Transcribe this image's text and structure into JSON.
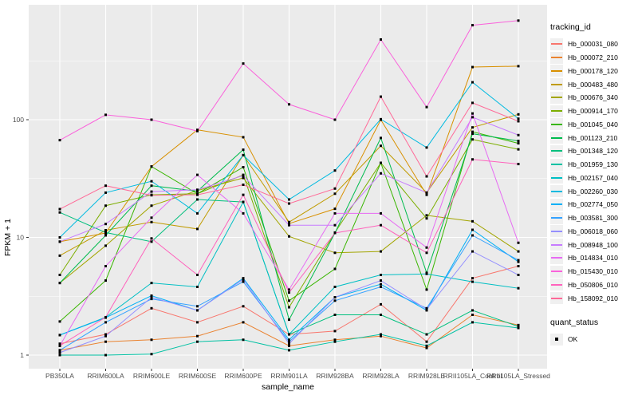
{
  "figure": {
    "x_axis_title": "sample_name",
    "y_axis_title": "FPKM + 1",
    "panel_background": "#EBEBEB",
    "grid_color": "#FFFFFF",
    "tick_color": "#333333",
    "tick_label_color": "#4D4D4D",
    "marker_color": "#000000"
  },
  "legend": {
    "tracking_title": "tracking_id",
    "quant_title": "quant_status",
    "quant_ok_label": "OK"
  },
  "chart_data": {
    "type": "line",
    "title": "",
    "xlabel": "sample_name",
    "ylabel": "FPKM + 1",
    "y_scale": "log10",
    "y_ticks": [
      1,
      10,
      100
    ],
    "y_minor_ticks": [
      3.162,
      31.62,
      316.2
    ],
    "ylim": [
      0.93,
      950
    ],
    "grid": true,
    "legend_position": "right",
    "point_marker": "filled-black-square",
    "categories": [
      "PB350LA",
      "RRIM600LA",
      "RRIM600LE",
      "RRIM600SE",
      "RRIM600PE",
      "RRIM901LA",
      "RRIM928BA",
      "RRIM928LA",
      "RRIM928LE",
      "RRII105LA_Control",
      "RRII105LA_Stressed"
    ],
    "series": [
      {
        "name": "Hb_000031_080",
        "color": "#F8766D",
        "values": [
          1.25,
          1.5,
          2.5,
          1.9,
          2.6,
          1.5,
          1.6,
          2.7,
          1.3,
          4.5,
          5.7
        ]
      },
      {
        "name": "Hb_000072_210",
        "color": "#EA8331",
        "values": [
          1.1,
          1.3,
          1.35,
          1.45,
          1.9,
          1.2,
          1.35,
          1.45,
          1.15,
          2.2,
          1.8
        ]
      },
      {
        "name": "Hb_000178_120",
        "color": "#D89000",
        "values": [
          9.2,
          10.9,
          40,
          82,
          71,
          13.1,
          17.5,
          100,
          23,
          280,
          285
        ]
      },
      {
        "name": "Hb_000483_480",
        "color": "#C09B00",
        "values": [
          7.0,
          11.5,
          13.5,
          11.8,
          50,
          13.5,
          23.5,
          60,
          24,
          86,
          111
        ]
      },
      {
        "name": "Hb_000676_340",
        "color": "#A3A500",
        "values": [
          4.1,
          8.5,
          18.6,
          25,
          32,
          10.2,
          7.4,
          7.6,
          15.4,
          13.7,
          7.6
        ]
      },
      {
        "name": "Hb_000914_170",
        "color": "#7CAE00",
        "values": [
          4.8,
          18.6,
          23,
          23.5,
          34,
          2.55,
          11,
          43,
          14.5,
          68,
          56
        ]
      },
      {
        "name": "Hb_001045_040",
        "color": "#39B600",
        "values": [
          1.93,
          4.3,
          40,
          23.5,
          39.5,
          2.9,
          5.4,
          43,
          3.6,
          79,
          63
        ]
      },
      {
        "name": "Hb_001123_210",
        "color": "#00BB4E",
        "values": [
          4.1,
          10.4,
          27.5,
          24.7,
          55.6,
          2.0,
          10.9,
          70,
          5.0,
          76,
          66
        ]
      },
      {
        "name": "Hb_001348_120",
        "color": "#00BF7D",
        "values": [
          16.3,
          11,
          9.2,
          21,
          20,
          1.5,
          2.2,
          2.2,
          1.5,
          2.4,
          1.75
        ]
      },
      {
        "name": "Hb_001959_130",
        "color": "#00C1A3",
        "values": [
          1.0,
          1.0,
          1.02,
          1.3,
          1.35,
          1.1,
          1.3,
          1.5,
          1.2,
          1.9,
          1.7
        ]
      },
      {
        "name": "Hb_002157_040",
        "color": "#00BFC4",
        "values": [
          1.48,
          2.1,
          4.1,
          3.8,
          20,
          1.5,
          3.8,
          4.8,
          4.9,
          4.2,
          3.7
        ]
      },
      {
        "name": "Hb_002260_030",
        "color": "#00BAE0",
        "values": [
          10,
          24,
          30,
          16,
          50,
          21,
          37,
          101,
          58,
          208,
          102
        ]
      },
      {
        "name": "Hb_002774_050",
        "color": "#00B0F6",
        "values": [
          1.48,
          2.08,
          3.2,
          2.4,
          4.5,
          1.35,
          3.1,
          4.0,
          2.4,
          11.6,
          6.2
        ]
      },
      {
        "name": "Hb_003581_300",
        "color": "#35A2FF",
        "values": [
          1.1,
          1.9,
          3.0,
          2.6,
          4.2,
          1.3,
          2.9,
          3.8,
          2.5,
          10.4,
          6.4
        ]
      },
      {
        "name": "Hb_006018_060",
        "color": "#9590FF",
        "values": [
          1.05,
          1.45,
          3.1,
          2.4,
          4.4,
          1.25,
          3.1,
          4.3,
          2.45,
          7.6,
          4.8
        ]
      },
      {
        "name": "Hb_008948_100",
        "color": "#C77CFF",
        "values": [
          9.2,
          13,
          24.5,
          25.4,
          33.5,
          12.7,
          12.7,
          35,
          24,
          105,
          74
        ]
      },
      {
        "name": "Hb_014834_010",
        "color": "#E76BF3",
        "values": [
          1.2,
          5.7,
          14.7,
          34,
          16,
          3.6,
          16,
          16,
          8.2,
          113,
          9.0
        ]
      },
      {
        "name": "Hb_015430_010",
        "color": "#FA62DB",
        "values": [
          67,
          110,
          100,
          80,
          300,
          135,
          100,
          480,
          128,
          635,
          695
        ]
      },
      {
        "name": "Hb_050806_010",
        "color": "#FF62BC",
        "values": [
          1.2,
          2.1,
          9.8,
          4.8,
          23,
          3.4,
          10.9,
          12.7,
          7.4,
          46,
          42
        ]
      },
      {
        "name": "Hb_158092_010",
        "color": "#FF6A98",
        "values": [
          17.4,
          27.5,
          22.8,
          23,
          28,
          19.4,
          26,
          157,
          33,
          139,
          97
        ]
      }
    ]
  }
}
